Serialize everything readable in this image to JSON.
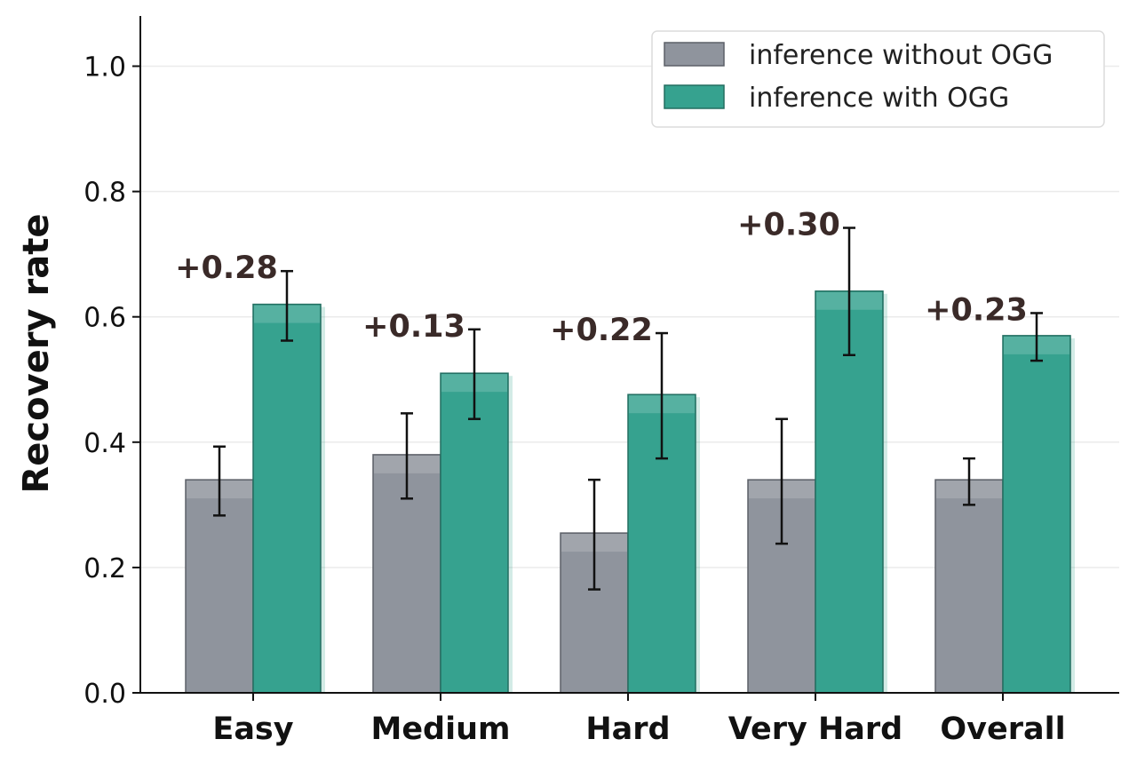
{
  "chart_data": {
    "type": "bar",
    "ylabel": "Recovery rate",
    "xlabel": "",
    "ylim": [
      0.0,
      1.08
    ],
    "yticks": [
      "0.0",
      "0.2",
      "0.4",
      "0.6",
      "0.8",
      "1.0"
    ],
    "grid": "horizontal",
    "legend_position": "top-right",
    "categories": [
      "Easy",
      "Medium",
      "Hard",
      "Very Hard",
      "Overall"
    ],
    "series": [
      {
        "name": "inference without OGG",
        "color": "#8f949d",
        "values": [
          0.34,
          0.38,
          0.255,
          0.34,
          0.34
        ],
        "error_low": [
          0.283,
          0.31,
          0.165,
          0.238,
          0.3
        ],
        "error_high": [
          0.393,
          0.446,
          0.34,
          0.437,
          0.374
        ]
      },
      {
        "name": "inference with OGG",
        "color": "#36a28f",
        "values": [
          0.62,
          0.51,
          0.476,
          0.641,
          0.57
        ],
        "error_low": [
          0.562,
          0.437,
          0.374,
          0.539,
          0.53
        ],
        "error_high": [
          0.673,
          0.58,
          0.574,
          0.742,
          0.606
        ]
      }
    ],
    "annotations": [
      "+0.28",
      "+0.13",
      "+0.22",
      "+0.30",
      "+0.23"
    ]
  }
}
